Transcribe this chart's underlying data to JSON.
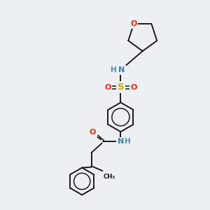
{
  "bg_color": "#edf0f2",
  "bond_color": "#1a1a1a",
  "colors": {
    "N": "#3a7cbd",
    "O": "#ff2200",
    "S": "#ccaa00",
    "H": "#4a90a4"
  },
  "figsize": [
    3.0,
    3.0
  ],
  "dpi": 100
}
